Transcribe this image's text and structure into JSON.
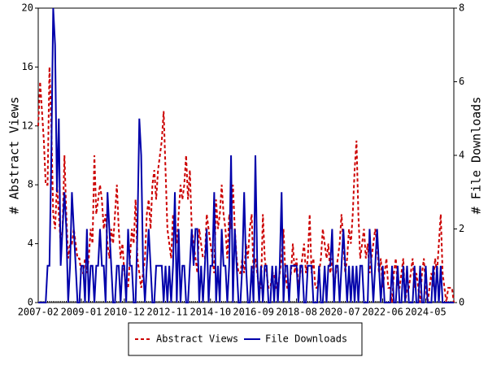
{
  "chart_data": {
    "type": "line",
    "y_label": "# Abstract Views",
    "y2_label": "# File Downloads",
    "categories": [
      "2007-02",
      null,
      null,
      null,
      null,
      null,
      null,
      null,
      null,
      null,
      null,
      null,
      null,
      null,
      null,
      null,
      null,
      null,
      null,
      null,
      null,
      null,
      null,
      "2009-01",
      null,
      null,
      null,
      null,
      null,
      null,
      null,
      null,
      null,
      null,
      null,
      null,
      null,
      null,
      null,
      null,
      null,
      null,
      null,
      null,
      null,
      null,
      "2010-12",
      null,
      null,
      null,
      null,
      null,
      null,
      null,
      null,
      null,
      null,
      null,
      null,
      null,
      null,
      null,
      null,
      null,
      null,
      null,
      null,
      null,
      null,
      "2012-11",
      null,
      null,
      null,
      null,
      null,
      null,
      null,
      null,
      null,
      null,
      null,
      null,
      null,
      null,
      null,
      null,
      null,
      null,
      null,
      null,
      null,
      null,
      "2014-10",
      null,
      null,
      null,
      null,
      null,
      null,
      null,
      null,
      null,
      null,
      null,
      null,
      null,
      null,
      null,
      null,
      null,
      null,
      null,
      null,
      null,
      null,
      "2016-09",
      null,
      null,
      null,
      null,
      null,
      null,
      null,
      null,
      null,
      null,
      null,
      null,
      null,
      null,
      null,
      null,
      null,
      null,
      null,
      null,
      null,
      null,
      "2018-08",
      null,
      null,
      null,
      null,
      null,
      null,
      null,
      null,
      null,
      null,
      null,
      null,
      null,
      null,
      null,
      null,
      null,
      null,
      null,
      null,
      null,
      null,
      "2020-07",
      null,
      null,
      null,
      null,
      null,
      null,
      null,
      null,
      null,
      null,
      null,
      null,
      null,
      null,
      null,
      null,
      null,
      null,
      null,
      null,
      null,
      null,
      "2022-06",
      null,
      null,
      null,
      null,
      null,
      null,
      null,
      null,
      null,
      null,
      null,
      null,
      null,
      null,
      null,
      null,
      null,
      null,
      null,
      null,
      null,
      null,
      "2024-05",
      null,
      null,
      null,
      null,
      null,
      null,
      null,
      null,
      null,
      null,
      null,
      null,
      null,
      null,
      null
    ],
    "series": [
      {
        "name": "Abstract Views",
        "color": "#cc0000",
        "style": "dashed",
        "axis": "y",
        "values": [
          12,
          15,
          13,
          11,
          8,
          8,
          16,
          12,
          6,
          5,
          8,
          6,
          4,
          5,
          10,
          6,
          3,
          4,
          4,
          5,
          4,
          3,
          3,
          2,
          2,
          3,
          2,
          3,
          5,
          4,
          10,
          6,
          7,
          8,
          7,
          5,
          6,
          4,
          3,
          5,
          4,
          6,
          8,
          5,
          3,
          4,
          2,
          1,
          1,
          3,
          5,
          4,
          7,
          3,
          2,
          1,
          2,
          3,
          6,
          7,
          5,
          8,
          9,
          7,
          9,
          10,
          11,
          13,
          9,
          5,
          4,
          3,
          6,
          5,
          4,
          6,
          8,
          7,
          8,
          10,
          7,
          9,
          5,
          4,
          3,
          2,
          5,
          4,
          3,
          3,
          6,
          5,
          4,
          3,
          2,
          7,
          5,
          6,
          8,
          6,
          5,
          3,
          6,
          5,
          8,
          5,
          3,
          2,
          2,
          3,
          2,
          4,
          3,
          5,
          6,
          2,
          3,
          2,
          1,
          1,
          6,
          3,
          2,
          1,
          1,
          2,
          2,
          1,
          1,
          2,
          3,
          5,
          2,
          1,
          1,
          2,
          4,
          2,
          3,
          1,
          2,
          3,
          4,
          2,
          3,
          6,
          2,
          3,
          1,
          1,
          2,
          3,
          5,
          4,
          3,
          4,
          2,
          3,
          1,
          2,
          3,
          4,
          6,
          4,
          2,
          3,
          5,
          4,
          6,
          9,
          11,
          6,
          3,
          4,
          5,
          3,
          4,
          2,
          3,
          4,
          5,
          4,
          2,
          3,
          1,
          2,
          3,
          1,
          1,
          0,
          2,
          3,
          1,
          1,
          2,
          3,
          0,
          1,
          1,
          2,
          3,
          1,
          2,
          1,
          0,
          2,
          3,
          1,
          0,
          1,
          2,
          1,
          3,
          2,
          4,
          6,
          2,
          1,
          0,
          1,
          1,
          1,
          0
        ]
      },
      {
        "name": "File Downloads",
        "color": "#0000aa",
        "style": "solid",
        "axis": "y2",
        "values": [
          0,
          0,
          0,
          0,
          0,
          1,
          1,
          4,
          8,
          7,
          3,
          5,
          1,
          2,
          3,
          2,
          0,
          1,
          3,
          2,
          1,
          0,
          0,
          1,
          1,
          0,
          2,
          0,
          1,
          1,
          0,
          1,
          1,
          2,
          1,
          1,
          0,
          3,
          2,
          1,
          0,
          0,
          1,
          1,
          0,
          1,
          1,
          0,
          2,
          1,
          1,
          0,
          0,
          2,
          5,
          4,
          1,
          0,
          1,
          2,
          1,
          0,
          0,
          1,
          1,
          1,
          1,
          0,
          1,
          0,
          1,
          0,
          1,
          3,
          0,
          2,
          0,
          1,
          1,
          0,
          0,
          1,
          2,
          1,
          2,
          2,
          0,
          1,
          0,
          1,
          2,
          0,
          1,
          1,
          3,
          0,
          1,
          0,
          2,
          1,
          1,
          0,
          1,
          4,
          0,
          2,
          1,
          0,
          0,
          1,
          3,
          1,
          0,
          0,
          1,
          0,
          4,
          1,
          0,
          1,
          0,
          1,
          1,
          0,
          0,
          1,
          0,
          1,
          0,
          1,
          3,
          0,
          1,
          1,
          0,
          1,
          1,
          1,
          1,
          0,
          1,
          1,
          0,
          0,
          1,
          1,
          1,
          0,
          0,
          0,
          1,
          0,
          0,
          1,
          0,
          1,
          1,
          2,
          0,
          1,
          1,
          0,
          1,
          2,
          1,
          0,
          1,
          0,
          1,
          0,
          1,
          0,
          1,
          1,
          0,
          0,
          0,
          2,
          1,
          0,
          1,
          2,
          1,
          0,
          1,
          0,
          0,
          0,
          0,
          1,
          0,
          0,
          1,
          0,
          0,
          1,
          0,
          1,
          0,
          0,
          0,
          1,
          0,
          0,
          1,
          0,
          0,
          1,
          0,
          0,
          0,
          1,
          0,
          1,
          0,
          1,
          0,
          0,
          0,
          0,
          0,
          0,
          0
        ]
      }
    ],
    "ylim": [
      0,
      20
    ],
    "yticks": [
      0,
      4,
      8,
      12,
      16,
      20
    ],
    "y2lim": [
      0,
      8
    ],
    "y2ticks": [
      0,
      2,
      4,
      6,
      8
    ],
    "legend": "bottom"
  }
}
